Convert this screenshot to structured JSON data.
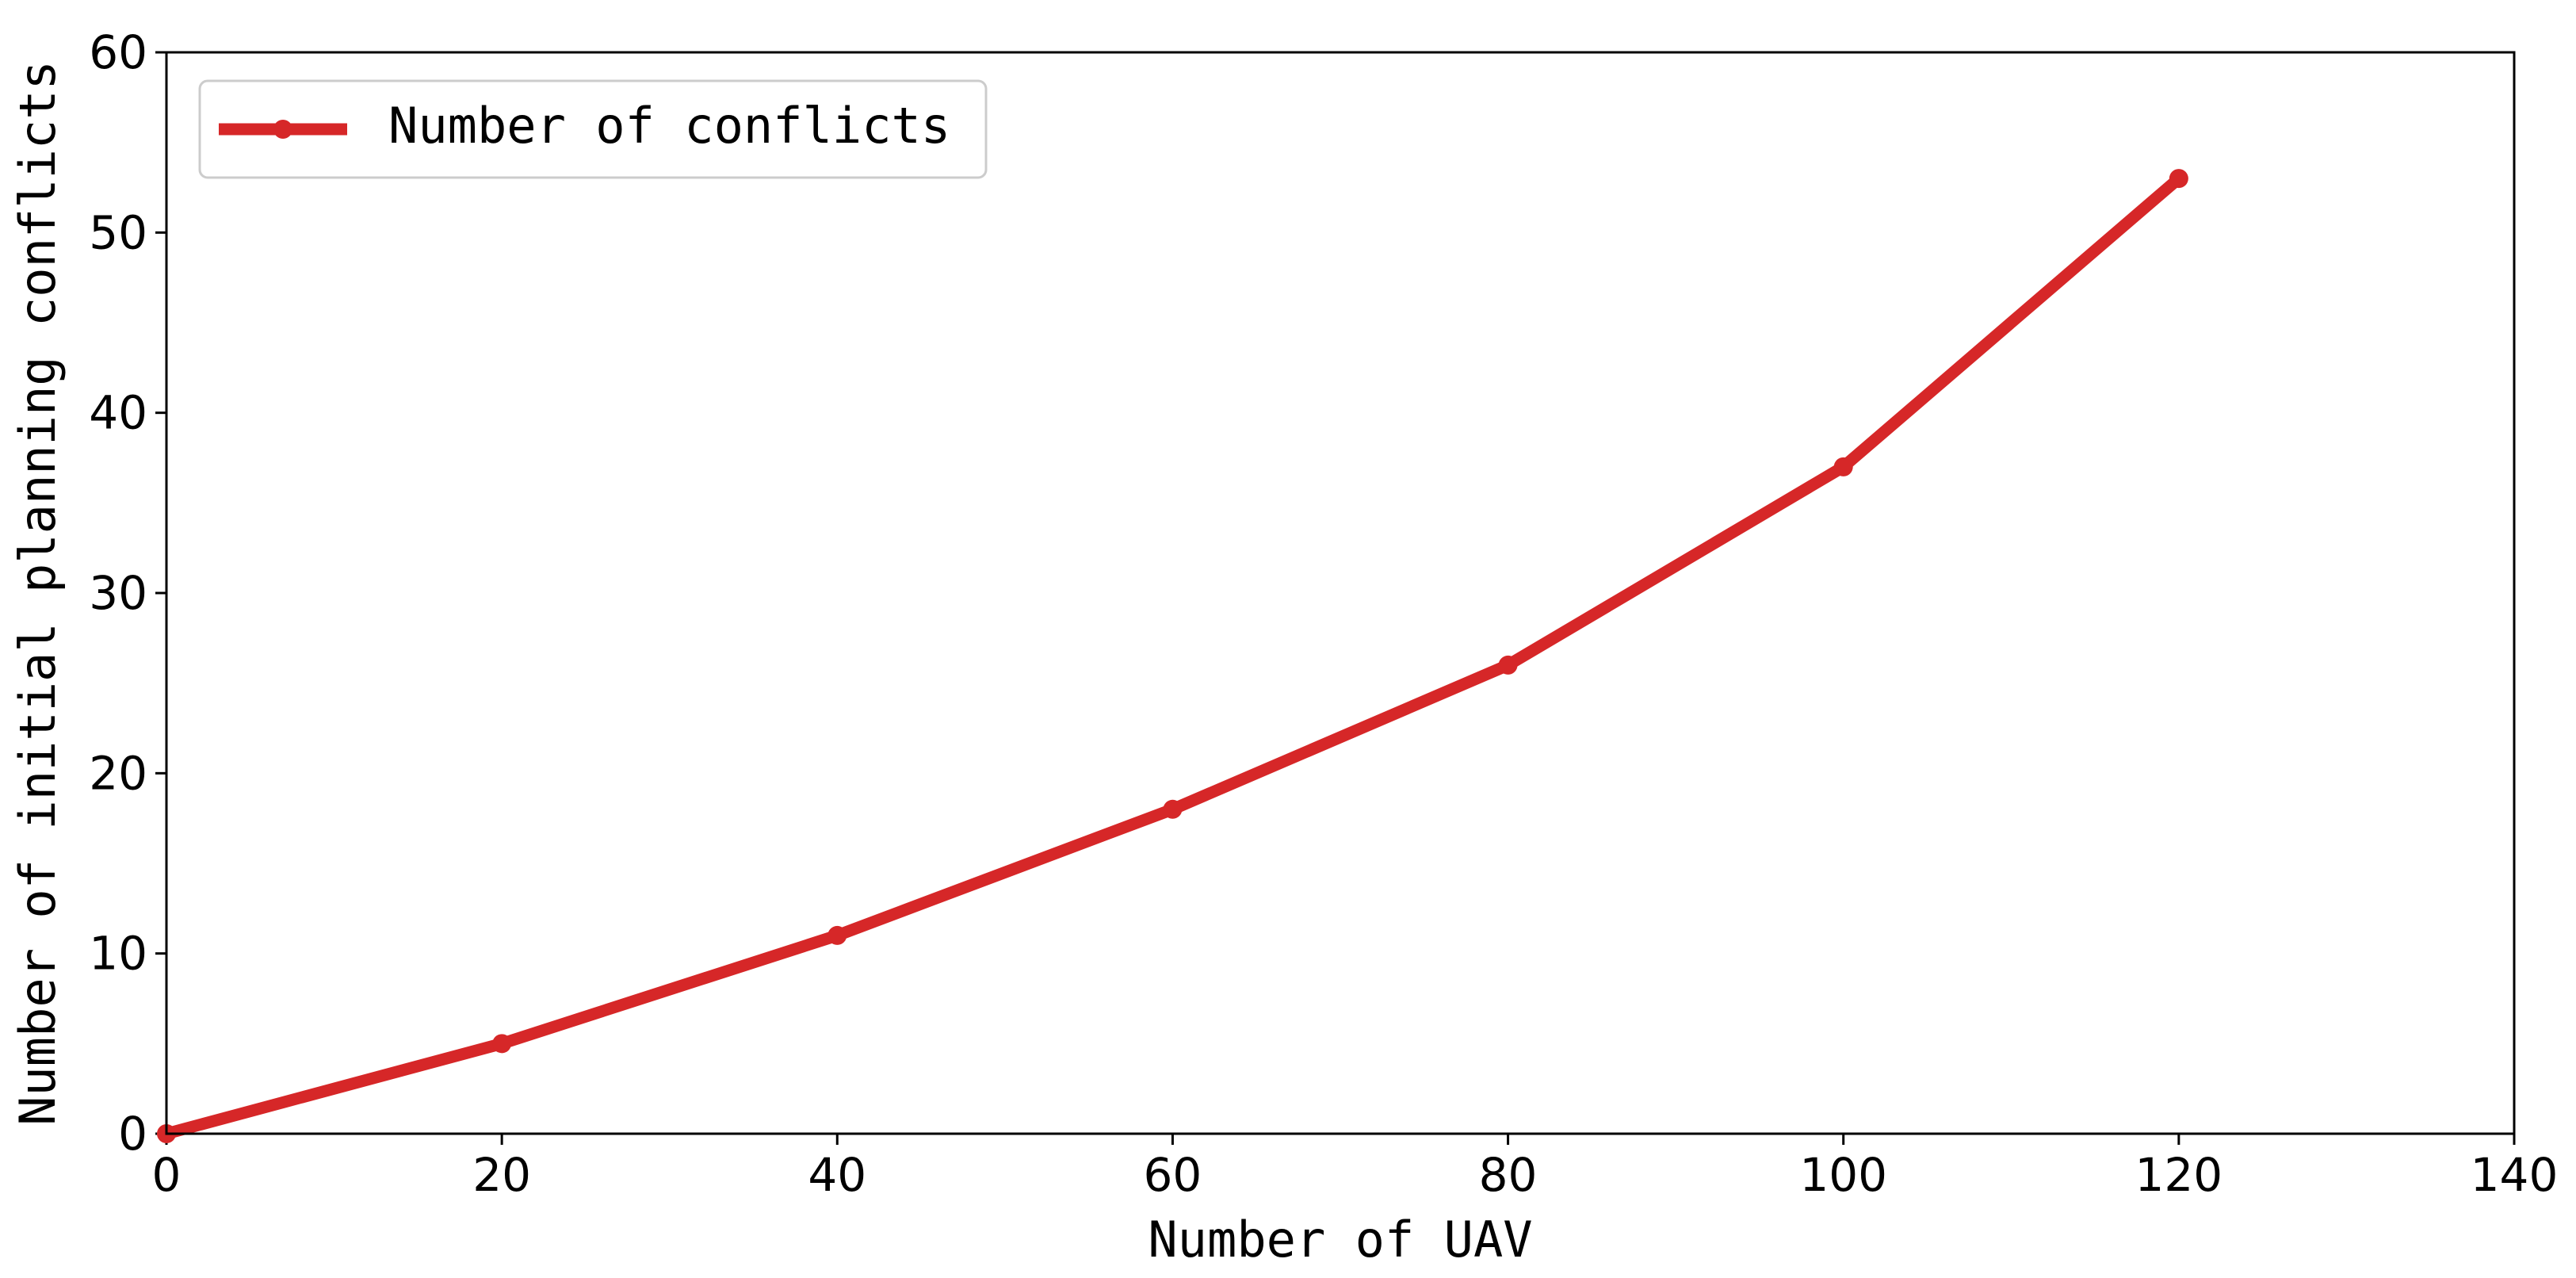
{
  "chart_data": {
    "type": "line",
    "x": [
      0,
      20,
      40,
      60,
      80,
      100,
      120
    ],
    "series": [
      {
        "name": "Number of conflicts",
        "values": [
          0,
          5,
          11,
          18,
          26,
          37,
          53
        ]
      }
    ],
    "xlabel": "Number of UAV",
    "ylabel": "Number of initial planning conflicts",
    "xlim": [
      0,
      140
    ],
    "ylim": [
      0,
      60
    ],
    "xticks": [
      "0",
      "20",
      "40",
      "60",
      "80",
      "100",
      "120",
      "140"
    ],
    "yticks": [
      "0",
      "10",
      "20",
      "30",
      "40",
      "50",
      "60"
    ],
    "grid": false,
    "legend_position": "top-left",
    "line_color": "#d62728",
    "marker": "circle"
  }
}
